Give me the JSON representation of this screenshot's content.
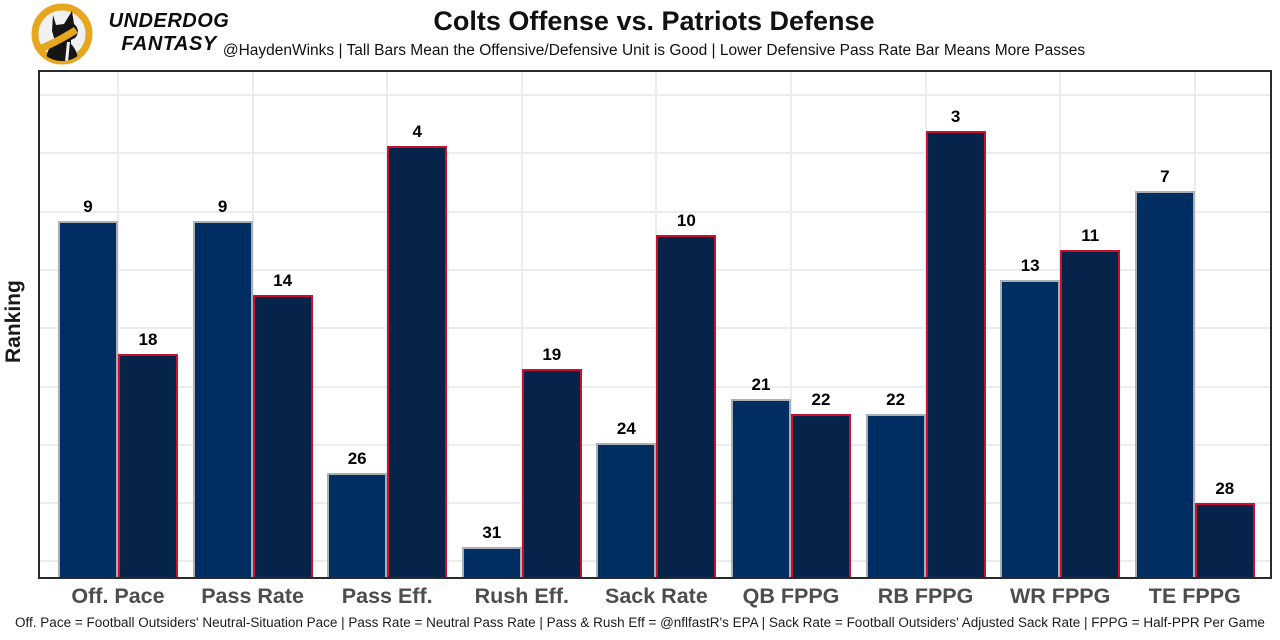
{
  "header": {
    "brand_line1": "UNDERDOG",
    "brand_line2": "FANTASY",
    "title": "Colts Offense vs. Patriots Defense",
    "subtitle": "@HaydenWinks | Tall Bars Mean the Offensive/Defensive Unit is Good | Lower Defensive Pass Rate Bar Means More Passes"
  },
  "chart_data": {
    "type": "bar",
    "title": "Colts Offense vs. Patriots Defense",
    "ylabel": "Ranking",
    "categories": [
      "Off. Pace",
      "Pass Rate",
      "Pass Eff.",
      "Rush Eff.",
      "Sack Rate",
      "QB FPPG",
      "RB FPPG",
      "WR FPPG",
      "TE FPPG"
    ],
    "series": [
      {
        "name": "Colts Offense",
        "fill": "#002D62",
        "border": "#A9AFB4",
        "values": [
          9,
          9,
          26,
          31,
          24,
          21,
          22,
          13,
          7
        ]
      },
      {
        "name": "Patriots Defense",
        "fill": "#06234A",
        "border": "#C9102E",
        "values": [
          18,
          14,
          4,
          19,
          10,
          22,
          3,
          11,
          28
        ]
      }
    ],
    "value_semantics": "values are NFL ranks; lower rank = taller bar; bar height = (33 - rank) / 34 of axis height",
    "axis_units_max": 34,
    "grid": true,
    "legend": "none"
  },
  "footer": {
    "note": "Off. Pace = Football Outsiders' Neutral-Situation Pace | Pass Rate = Neutral Pass Rate | Pass & Rush Eff = @nflfastR's EPA | Sack Rate = Football Outsiders' Adjusted Sack Rate | FPPG = Half-PPR Per Game"
  },
  "colors": {
    "offense_fill": "#002D62",
    "offense_border": "#A9AFB4",
    "defense_fill": "#06234A",
    "defense_border": "#C9102E",
    "logo_gold": "#E6A71E",
    "tick_text": "#4d4d4d"
  }
}
